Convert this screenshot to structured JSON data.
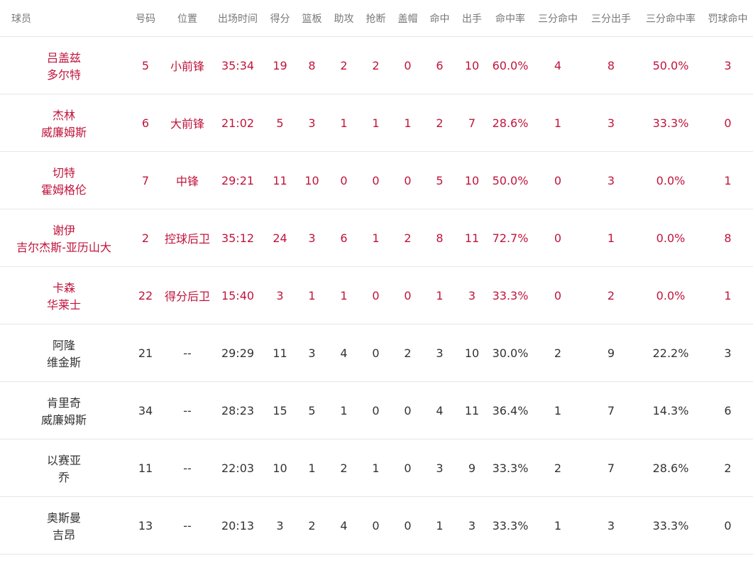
{
  "table": {
    "header": [
      "球员",
      "号码",
      "位置",
      "出场时间",
      "得分",
      "篮板",
      "助攻",
      "抢断",
      "盖帽",
      "命中",
      "出手",
      "命中率",
      "三分命中",
      "三分出手",
      "三分命中率",
      "罚球命中"
    ],
    "rows": [
      {
        "starter": true,
        "name": [
          "吕盖兹",
          "多尔特"
        ],
        "cells": [
          "5",
          "小前锋",
          "35:34",
          "19",
          "8",
          "2",
          "2",
          "0",
          "6",
          "10",
          "60.0%",
          "4",
          "8",
          "50.0%",
          "3"
        ]
      },
      {
        "starter": true,
        "name": [
          "杰林",
          "威廉姆斯"
        ],
        "cells": [
          "6",
          "大前锋",
          "21:02",
          "5",
          "3",
          "1",
          "1",
          "1",
          "2",
          "7",
          "28.6%",
          "1",
          "3",
          "33.3%",
          "0"
        ]
      },
      {
        "starter": true,
        "name": [
          "切特",
          "霍姆格伦"
        ],
        "cells": [
          "7",
          "中锋",
          "29:21",
          "11",
          "10",
          "0",
          "0",
          "0",
          "5",
          "10",
          "50.0%",
          "0",
          "3",
          "0.0%",
          "1"
        ]
      },
      {
        "starter": true,
        "name": [
          "谢伊",
          "吉尔杰斯-亚历山大"
        ],
        "cells": [
          "2",
          "控球后卫",
          "35:12",
          "24",
          "3",
          "6",
          "1",
          "2",
          "8",
          "11",
          "72.7%",
          "0",
          "1",
          "0.0%",
          "8"
        ]
      },
      {
        "starter": true,
        "name": [
          "卡森",
          "华莱士"
        ],
        "cells": [
          "22",
          "得分后卫",
          "15:40",
          "3",
          "1",
          "1",
          "0",
          "0",
          "1",
          "3",
          "33.3%",
          "0",
          "2",
          "0.0%",
          "1"
        ]
      },
      {
        "starter": false,
        "name": [
          "阿隆",
          "维金斯"
        ],
        "cells": [
          "21",
          "--",
          "29:29",
          "11",
          "3",
          "4",
          "0",
          "2",
          "3",
          "10",
          "30.0%",
          "2",
          "9",
          "22.2%",
          "3"
        ]
      },
      {
        "starter": false,
        "name": [
          "肯里奇",
          "威廉姆斯"
        ],
        "cells": [
          "34",
          "--",
          "28:23",
          "15",
          "5",
          "1",
          "0",
          "0",
          "4",
          "11",
          "36.4%",
          "1",
          "7",
          "14.3%",
          "6"
        ]
      },
      {
        "starter": false,
        "name": [
          "以赛亚",
          "乔"
        ],
        "cells": [
          "11",
          "--",
          "22:03",
          "10",
          "1",
          "2",
          "1",
          "0",
          "3",
          "9",
          "33.3%",
          "2",
          "7",
          "28.6%",
          "2"
        ]
      },
      {
        "starter": false,
        "name": [
          "奥斯曼",
          "吉昂"
        ],
        "cells": [
          "13",
          "--",
          "20:13",
          "3",
          "2",
          "4",
          "0",
          "0",
          "1",
          "3",
          "33.3%",
          "1",
          "3",
          "33.3%",
          "0"
        ]
      }
    ]
  }
}
